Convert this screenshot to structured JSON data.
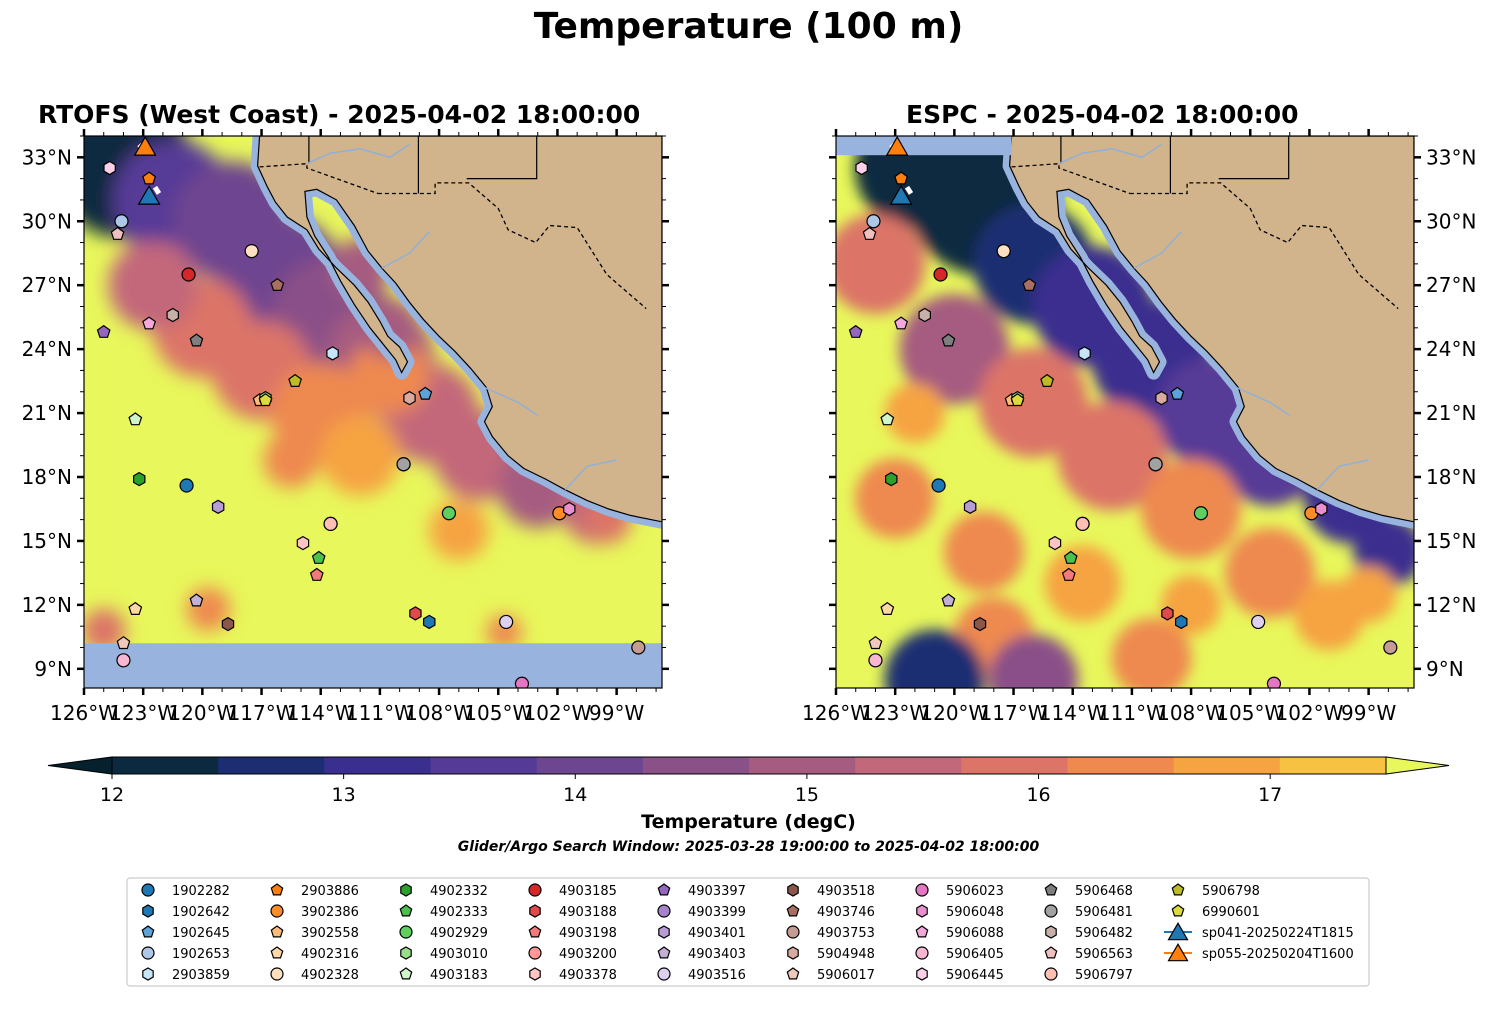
{
  "figure": {
    "title": "Temperature (100 m)",
    "search_window": "Glider/Argo Search Window: 2025-03-28 19:00:00 to 2025-04-02 18:00:00"
  },
  "chart_data": [
    {
      "type": "heatmap",
      "title": "RTOFS (West Coast) - 2025-04-02 18:00:00",
      "lon_range": [
        -126,
        -96.7
      ],
      "lat_range": [
        8.1,
        34.0
      ],
      "x_ticks": [
        "126°W",
        "123°W",
        "120°W",
        "117°W",
        "114°W",
        "111°W",
        "108°W",
        "105°W",
        "102°W",
        "99°W"
      ],
      "y_ticks": [
        "9°N",
        "12°N",
        "15°N",
        "18°N",
        "21°N",
        "24°N",
        "27°N",
        "30°N",
        "33°N"
      ],
      "y_axis_side": "left",
      "no_data_below_lat": 10.2
    },
    {
      "type": "heatmap",
      "title": "ESPC - 2025-04-02 18:00:00",
      "lon_range": [
        -126,
        -96.7
      ],
      "lat_range": [
        8.1,
        34.0
      ],
      "x_ticks": [
        "126°W",
        "123°W",
        "120°W",
        "117°W",
        "114°W",
        "111°W",
        "108°W",
        "105°W",
        "102°W",
        "99°W"
      ],
      "y_ticks": [
        "9°N",
        "12°N",
        "15°N",
        "18°N",
        "21°N",
        "24°N",
        "27°N",
        "30°N",
        "33°N"
      ],
      "y_axis_side": "right"
    }
  ],
  "colorbar": {
    "label": "Temperature (degC)",
    "min": 12,
    "max": 17.5,
    "step": 0.5,
    "extend": "both",
    "ticks": [
      "12",
      "13",
      "14",
      "15",
      "16",
      "17"
    ],
    "colors": [
      "#0b2a3f",
      "#1d2d72",
      "#3a2f8f",
      "#563a97",
      "#6e4590",
      "#8a5088",
      "#a65c80",
      "#c3677a",
      "#dc7468",
      "#ee8950",
      "#f6a342",
      "#f7c141"
    ],
    "under_color": "#06202e",
    "over_color": "#e8f75b",
    "land_color": "#d2b48c",
    "no_data_color": "#98b4de"
  },
  "floats": [
    {
      "id": "1902282",
      "lon": -120.8,
      "lat": 17.6,
      "marker": "circle",
      "color": "#1f77b4"
    },
    {
      "id": "1902642",
      "lon": -108.5,
      "lat": 11.2,
      "marker": "hexagon",
      "color": "#1f77b4"
    },
    {
      "id": "1902645",
      "lon": -108.7,
      "lat": 21.9,
      "marker": "pentagon",
      "color": "#5ba3d9"
    },
    {
      "id": "1902653",
      "lon": -124.1,
      "lat": 30.0,
      "marker": "circle",
      "color": "#aec7e8"
    },
    {
      "id": "2903859",
      "lon": -113.4,
      "lat": 23.8,
      "marker": "hexagon",
      "color": "#c6e5f7"
    },
    {
      "id": "2903886",
      "lon": -122.7,
      "lat": 32.0,
      "marker": "pentagon",
      "color": "#ff7f0e"
    },
    {
      "id": "3902386",
      "lon": -101.9,
      "lat": 16.3,
      "marker": "circle",
      "color": "#ff8c28"
    },
    {
      "id": "3902558",
      "lon": -117.1,
      "lat": 21.6,
      "marker": "pentagon",
      "color": "#ffbb78"
    },
    {
      "id": "4902316",
      "lon": -123.4,
      "lat": 11.8,
      "marker": "pentagon",
      "color": "#ffd7a8"
    },
    {
      "id": "4902328",
      "lon": -117.5,
      "lat": 28.6,
      "marker": "circle",
      "color": "#ffe0c0"
    },
    {
      "id": "4902332",
      "lon": -123.2,
      "lat": 17.9,
      "marker": "hexagon",
      "color": "#2ca02c"
    },
    {
      "id": "4902333",
      "lon": -114.1,
      "lat": 14.2,
      "marker": "pentagon",
      "color": "#4cc04c"
    },
    {
      "id": "4902929",
      "lon": -107.5,
      "lat": 16.3,
      "marker": "circle",
      "color": "#5fd05f"
    },
    {
      "id": "4903010",
      "lon": -116.8,
      "lat": 21.7,
      "marker": "hexagon",
      "color": "#98df8a"
    },
    {
      "id": "4903183",
      "lon": -123.4,
      "lat": 20.7,
      "marker": "pentagon",
      "color": "#d0f5c8"
    },
    {
      "id": "4903185",
      "lon": -120.7,
      "lat": 27.5,
      "marker": "circle",
      "color": "#d62728"
    },
    {
      "id": "4903188",
      "lon": -109.2,
      "lat": 11.6,
      "marker": "hexagon",
      "color": "#e04a4a"
    },
    {
      "id": "4903198",
      "lon": -114.2,
      "lat": 13.4,
      "marker": "pentagon",
      "color": "#f47a7a"
    },
    {
      "id": "4903200",
      "lon": -113.5,
      "lat": 15.8,
      "marker": "circle",
      "color": "#ff9896"
    },
    {
      "id": "4903378",
      "lon": -114.9,
      "lat": 14.9,
      "marker": "hexagon",
      "color": "#ffc4c4"
    },
    {
      "id": "4903397",
      "lon": -125.0,
      "lat": 24.8,
      "marker": "pentagon",
      "color": "#9467bd"
    },
    {
      "id": "4903399",
      "lon": -109.8,
      "lat": 18.6,
      "marker": "circle",
      "color": "#a783c9"
    },
    {
      "id": "4903401",
      "lon": -119.2,
      "lat": 16.6,
      "marker": "hexagon",
      "color": "#b89cd6"
    },
    {
      "id": "4903403",
      "lon": -120.3,
      "lat": 12.2,
      "marker": "pentagon",
      "color": "#c5b0d5"
    },
    {
      "id": "4903516",
      "lon": -104.6,
      "lat": 11.2,
      "marker": "circle",
      "color": "#ddd0f0"
    },
    {
      "id": "4903518",
      "lon": -118.7,
      "lat": 11.1,
      "marker": "hexagon",
      "color": "#8c564b"
    },
    {
      "id": "4903746",
      "lon": -116.2,
      "lat": 27.0,
      "marker": "pentagon",
      "color": "#a86f62"
    },
    {
      "id": "4903753",
      "lon": -97.9,
      "lat": 10.0,
      "marker": "circle",
      "color": "#c49c94"
    },
    {
      "id": "5904948",
      "lon": -109.5,
      "lat": 21.7,
      "marker": "hexagon",
      "color": "#d8aaa0"
    },
    {
      "id": "5906017",
      "lon": -124.0,
      "lat": 10.2,
      "marker": "pentagon",
      "color": "#f0c8bc"
    },
    {
      "id": "5906023",
      "lon": -103.8,
      "lat": 8.3,
      "marker": "circle",
      "color": "#e377c2"
    },
    {
      "id": "5906048",
      "lon": -101.4,
      "lat": 16.5,
      "marker": "hexagon",
      "color": "#ea8fce"
    },
    {
      "id": "5906088",
      "lon": -122.7,
      "lat": 25.2,
      "marker": "pentagon",
      "color": "#f2a8da"
    },
    {
      "id": "5906405",
      "lon": -124.0,
      "lat": 9.4,
      "marker": "circle",
      "color": "#f7b6d2"
    },
    {
      "id": "5906445",
      "lon": -124.7,
      "lat": 32.5,
      "marker": "hexagon",
      "color": "#fbd0e8"
    },
    {
      "id": "5906468",
      "lon": -120.3,
      "lat": 24.4,
      "marker": "pentagon",
      "color": "#7f7f7f"
    },
    {
      "id": "5906481",
      "lon": -109.8,
      "lat": 18.6,
      "marker": "circle",
      "color": "#a2a2a2"
    },
    {
      "id": "5906482",
      "lon": -121.5,
      "lat": 25.6,
      "marker": "hexagon",
      "color": "#c7b0a8"
    },
    {
      "id": "5906563",
      "lon": -124.3,
      "lat": 29.4,
      "marker": "pentagon",
      "color": "#f0c0c0"
    },
    {
      "id": "5906797",
      "lon": -113.5,
      "lat": 15.8,
      "marker": "circle",
      "color": "#ffc0b4"
    },
    {
      "id": "5906798",
      "lon": -115.3,
      "lat": 22.5,
      "marker": "pentagon",
      "color": "#bcbd22"
    },
    {
      "id": "6990601",
      "lon": -116.8,
      "lat": 21.6,
      "marker": "pentagon",
      "color": "#dbdb3d"
    }
  ],
  "gliders": [
    {
      "id": "sp041-20250224T1815",
      "lon": -122.7,
      "lat": 31.2,
      "color": "#1f77b4",
      "track": "#1f77b4"
    },
    {
      "id": "sp055-20250204T1600",
      "lon": -122.9,
      "lat": 33.5,
      "color": "#ff7f0e",
      "track": "#ff7f0e"
    }
  ]
}
